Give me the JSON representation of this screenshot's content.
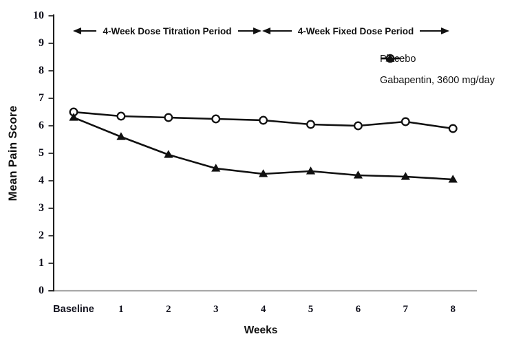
{
  "chart_data": {
    "type": "line",
    "title": "",
    "xlabel": "Weeks",
    "ylabel": "Mean Pain Score",
    "categories": [
      "Baseline",
      "1",
      "2",
      "3",
      "4",
      "5",
      "6",
      "7",
      "8"
    ],
    "yticks": [
      0,
      1,
      2,
      3,
      4,
      5,
      6,
      7,
      8,
      9,
      10
    ],
    "ylim": [
      0,
      10
    ],
    "grid": false,
    "legend_position": "upper right",
    "series": [
      {
        "name": "Placebo",
        "marker": "open-circle",
        "values": [
          6.5,
          6.35,
          6.3,
          6.25,
          6.2,
          6.05,
          6.0,
          6.15,
          5.9
        ]
      },
      {
        "name": "Gabapentin, 3600 mg/day",
        "marker": "filled-triangle",
        "values": [
          6.3,
          5.6,
          4.95,
          4.45,
          4.25,
          4.35,
          4.2,
          4.15,
          4.05
        ]
      }
    ],
    "annotations": [
      {
        "label": "4-Week Dose Titration Period",
        "span_weeks": [
          0,
          4
        ]
      },
      {
        "label": "4-Week Fixed Dose Period",
        "span_weeks": [
          4,
          8
        ]
      }
    ]
  },
  "colors": {
    "line": "#111111",
    "marker_fill": "#ffffff",
    "x_axis_line": "#a8a8a8",
    "y_axis_line": "#111111",
    "text": "#111111",
    "background": "#ffffff"
  }
}
